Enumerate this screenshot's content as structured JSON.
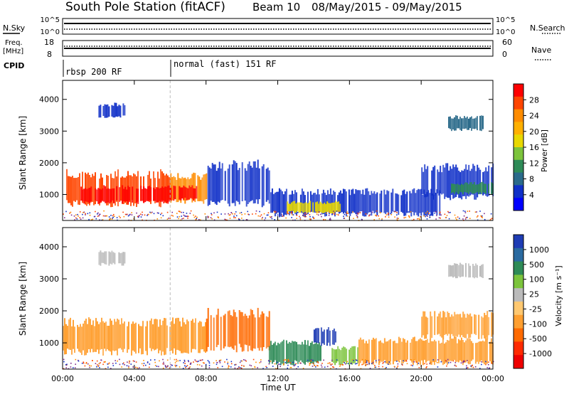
{
  "title": {
    "station": "South Pole Station (fitACF)",
    "beam": "Beam 10",
    "dates": "08/May/2015 - 09/May/2015"
  },
  "top_panels": {
    "nsky_label": "N.Sky",
    "nsearch_label": "N.Search",
    "noise_ticks_left": [
      "10^5",
      "10^0"
    ],
    "noise_ticks_right": [
      "10^5",
      "10^0"
    ],
    "freq_label_1": "Freq.",
    "freq_label_2": "[MHz]",
    "freq_ticks": [
      "18",
      "8"
    ],
    "nave_label": "Nave",
    "nave_ticks": [
      "60",
      "0"
    ],
    "cpid_label": "CPID",
    "cpid_segments": [
      "rbsp 200 RF",
      "normal (fast) 151 RF"
    ]
  },
  "axis": {
    "xlabel": "Time UT",
    "ylabel": "Slant Range [km]",
    "x_ticks": [
      "00:00",
      "04:00",
      "08:00",
      "12:00",
      "16:00",
      "20:00",
      "00:00"
    ],
    "y_ticks": [
      "1000",
      "2000",
      "3000",
      "4000"
    ]
  },
  "power_colorbar": {
    "label": "Power [dB]",
    "ticks": [
      "28",
      "24",
      "20",
      "16",
      "12",
      "8",
      "4"
    ],
    "colors": [
      "#ff0000",
      "#ff4500",
      "#ff8c00",
      "#ffb000",
      "#e8d800",
      "#7cc43c",
      "#2e8b57",
      "#2a6a8a",
      "#1030c8",
      "#0000ff"
    ]
  },
  "velocity_colorbar": {
    "label": "Velocity [m s⁻¹]",
    "ticks": [
      "1000",
      "500",
      "100",
      "25",
      "-25",
      "-100",
      "-500",
      "-1000"
    ],
    "colors": [
      "#1e3cb4",
      "#2a6aa0",
      "#2e8b57",
      "#7cc43c",
      "#bbbbbb",
      "#ffc870",
      "#ff9f30",
      "#ff6a00",
      "#ff2a00",
      "#ee0000"
    ]
  },
  "chart_data": {
    "type": "heatmap",
    "x_range_hours": [
      0,
      24
    ],
    "y_range_km": [
      180,
      4600
    ],
    "cpid_change_hour": 6.0,
    "power_patches": [
      {
        "t0": 0.2,
        "t1": 6.0,
        "r0": 600,
        "r1": 1800,
        "c": "#ff4500"
      },
      {
        "t0": 1.0,
        "t1": 6.0,
        "r0": 700,
        "r1": 1300,
        "c": "#ff0000"
      },
      {
        "t0": 6.0,
        "t1": 8.0,
        "r0": 700,
        "r1": 1700,
        "c": "#ff8c00"
      },
      {
        "t0": 6.0,
        "t1": 7.5,
        "r0": 800,
        "r1": 1300,
        "c": "#ff0000"
      },
      {
        "t0": 8.0,
        "t1": 11.5,
        "r0": 600,
        "r1": 2100,
        "c": "#1030c8"
      },
      {
        "t0": 11.5,
        "t1": 16.0,
        "r0": 300,
        "r1": 1200,
        "c": "#1030c8"
      },
      {
        "t0": 12.5,
        "t1": 15.5,
        "r0": 400,
        "r1": 800,
        "c": "#e8d800"
      },
      {
        "t0": 16.0,
        "t1": 21.0,
        "r0": 300,
        "r1": 1200,
        "c": "#1030c8"
      },
      {
        "t0": 20.0,
        "t1": 24.0,
        "r0": 800,
        "r1": 2000,
        "c": "#1030c8"
      },
      {
        "t0": 21.5,
        "t1": 24.0,
        "r0": 1000,
        "r1": 1400,
        "c": "#2e8b57"
      },
      {
        "t0": 2.0,
        "t1": 3.5,
        "r0": 3400,
        "r1": 3900,
        "c": "#1030c8"
      },
      {
        "t0": 21.5,
        "t1": 23.5,
        "r0": 3000,
        "r1": 3500,
        "c": "#2a6a8a"
      }
    ],
    "velocity_patches": [
      {
        "t0": 0.0,
        "t1": 8.0,
        "r0": 600,
        "r1": 1800,
        "c": "#ff9f30"
      },
      {
        "t0": 8.0,
        "t1": 11.5,
        "r0": 700,
        "r1": 2100,
        "c": "#ff6a00"
      },
      {
        "t0": 11.5,
        "t1": 14.5,
        "r0": 300,
        "r1": 1100,
        "c": "#2e8b57"
      },
      {
        "t0": 14.0,
        "t1": 15.2,
        "r0": 900,
        "r1": 1500,
        "c": "#1e3cb4"
      },
      {
        "t0": 15.0,
        "t1": 16.5,
        "r0": 300,
        "r1": 900,
        "c": "#7cc43c"
      },
      {
        "t0": 16.5,
        "t1": 24.0,
        "r0": 300,
        "r1": 1200,
        "c": "#ff9f30"
      },
      {
        "t0": 20.0,
        "t1": 24.0,
        "r0": 1100,
        "r1": 2000,
        "c": "#ff9f30"
      },
      {
        "t0": 2.0,
        "t1": 3.5,
        "r0": 3400,
        "r1": 3900,
        "c": "#bbbbbb"
      },
      {
        "t0": 21.5,
        "t1": 23.5,
        "r0": 3000,
        "r1": 3500,
        "c": "#bbbbbb"
      }
    ]
  }
}
